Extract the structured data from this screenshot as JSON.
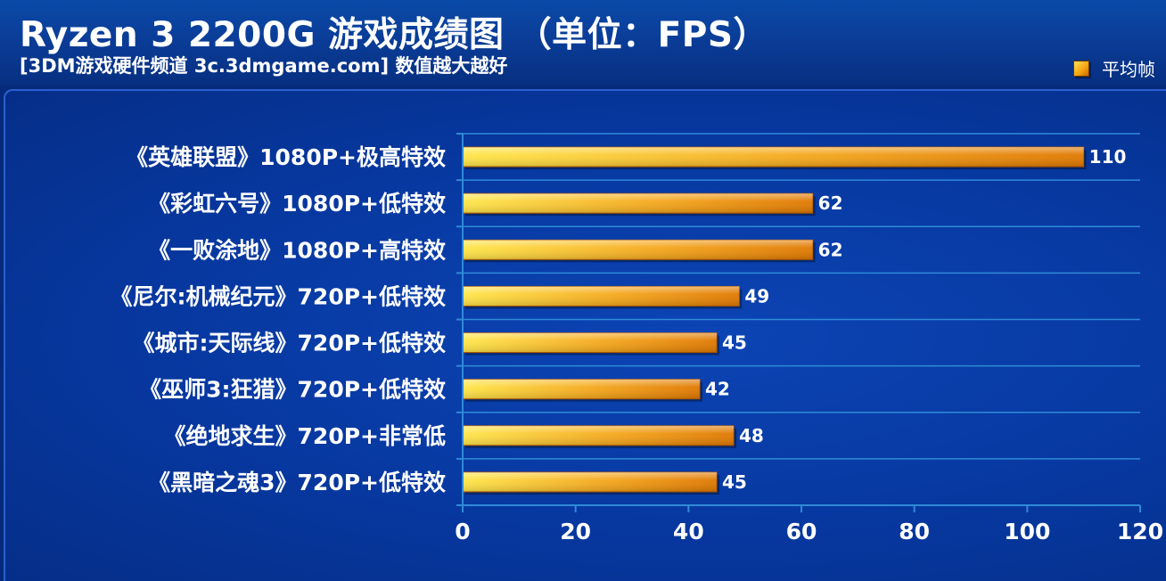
{
  "header": {
    "title": "Ryzen 3 2200G 游戏成绩图 （单位：FPS）",
    "subtitle": "[3DM游戏硬件频道 3c.3dmgame.com] 数值越大越好"
  },
  "colors": {
    "background": "#062a7a",
    "bar_light": "#ffe64a",
    "bar_dark": "#e07800",
    "gridline": "#2f8ad8",
    "text": "#ffffff"
  },
  "chart_data": {
    "type": "bar",
    "orientation": "horizontal",
    "title": "Ryzen 3 2200G 游戏成绩图 （单位：FPS）",
    "categories": [
      "《英雄联盟》1080P+极高特效",
      "《彩虹六号》1080P+低特效",
      "《一败涂地》1080P+高特效",
      "《尼尔:机械纪元》720P+低特效",
      "《城市:天际线》720P+低特效",
      "《巫师3:狂猎》720P+低特效",
      "《绝地求生》720P+非常低",
      "《黑暗之魂3》720P+低特效"
    ],
    "series": [
      {
        "name": "平均帧",
        "values": [
          110,
          62,
          62,
          49,
          45,
          42,
          48,
          45
        ]
      }
    ],
    "xlim": [
      0,
      120
    ],
    "xticks": [
      0,
      20,
      40,
      60,
      80,
      100,
      120
    ],
    "grid": true,
    "legend": "top-right",
    "xlabel": "",
    "ylabel": ""
  }
}
